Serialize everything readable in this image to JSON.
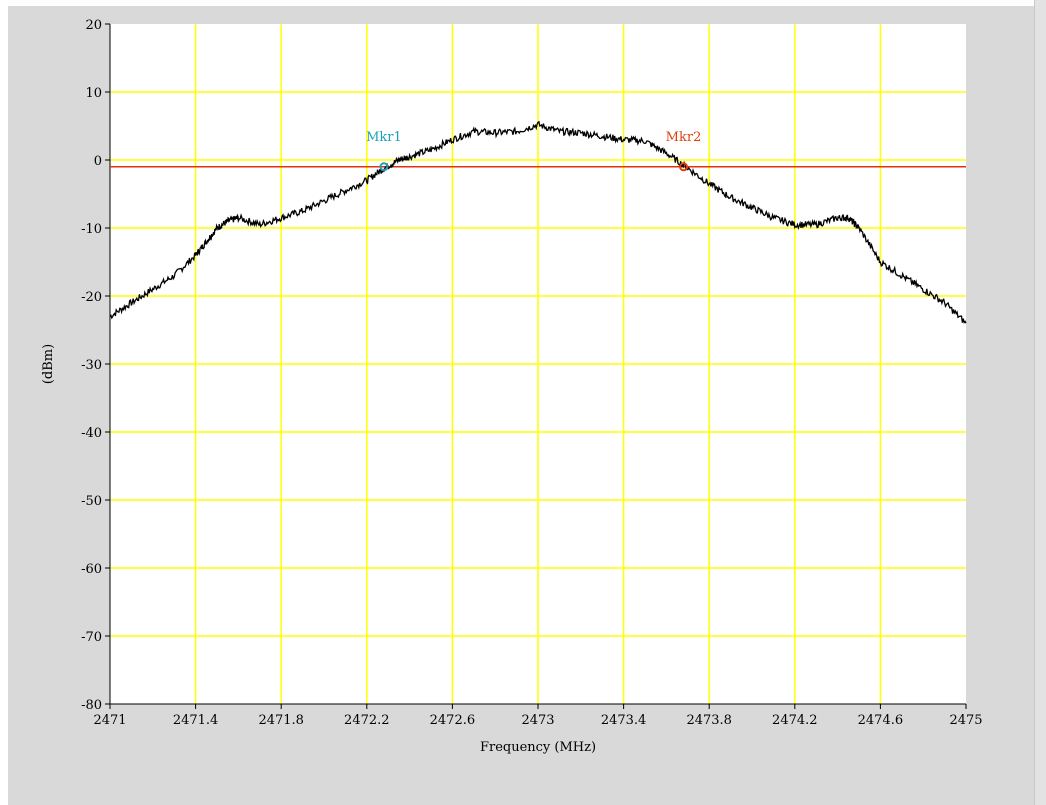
{
  "chart_data": {
    "type": "line",
    "title": "",
    "xlabel": "Frequency (MHz)",
    "ylabel": "(dBm)",
    "xlim": [
      2471,
      2475
    ],
    "ylim": [
      -80,
      20
    ],
    "x_ticks": [
      2471,
      2471.4,
      2471.8,
      2472.2,
      2472.6,
      2473,
      2473.4,
      2473.8,
      2474.2,
      2474.6,
      2475
    ],
    "x_tick_labels": [
      "2471",
      "2471.4",
      "2471.8",
      "2472.2",
      "2472.6",
      "2473",
      "2473.4",
      "2473.8",
      "2474.2",
      "2474.6",
      "2475"
    ],
    "y_ticks": [
      20,
      10,
      0,
      -10,
      -20,
      -30,
      -40,
      -50,
      -60,
      -70,
      -80
    ],
    "y_tick_labels": [
      "20",
      "10",
      "0",
      "-10",
      "-20",
      "-30",
      "-40",
      "-50",
      "-60",
      "-70",
      "-80"
    ],
    "grid": true,
    "colors": {
      "plot_background": "#ffffff",
      "grid": "#ffff00",
      "trace": "#000000",
      "reference_line": "#e03010",
      "mkr1": "#1f9fbf",
      "mkr2": "#e04010"
    },
    "series": [
      {
        "x": [
          2471.0,
          2471.1,
          2471.2,
          2471.3,
          2471.4,
          2471.45,
          2471.5,
          2471.55,
          2471.6,
          2471.7,
          2471.8,
          2471.9,
          2472.0,
          2472.1,
          2472.2,
          2472.28,
          2472.35,
          2472.4,
          2472.5,
          2472.6,
          2472.7,
          2472.8,
          2472.9,
          2473.0,
          2473.1,
          2473.2,
          2473.3,
          2473.4,
          2473.5,
          2473.6,
          2473.7,
          2473.8,
          2473.9,
          2474.0,
          2474.1,
          2474.2,
          2474.3,
          2474.4,
          2474.45,
          2474.5,
          2474.6,
          2474.7,
          2474.8,
          2474.9,
          2475.0
        ],
        "y": [
          -23,
          -21,
          -19,
          -17,
          -14,
          -12,
          -10,
          -9,
          -8.5,
          -9.5,
          -8.5,
          -7.5,
          -6,
          -4.5,
          -3,
          -1.2,
          0,
          0.5,
          1.5,
          3,
          4.2,
          4,
          4.2,
          5.2,
          4.2,
          4,
          3.5,
          3,
          2.8,
          1,
          -1.2,
          -3.5,
          -5.5,
          -7,
          -8.5,
          -9.5,
          -9.5,
          -8.5,
          -8.5,
          -10,
          -15,
          -17,
          -19,
          -21,
          -24
        ]
      }
    ],
    "reference_line": {
      "y": -1
    },
    "markers": [
      {
        "label": "Mkr1",
        "x": 2472.28,
        "y": -1
      },
      {
        "label": "Mkr2",
        "x": 2473.68,
        "y": -1
      }
    ]
  }
}
